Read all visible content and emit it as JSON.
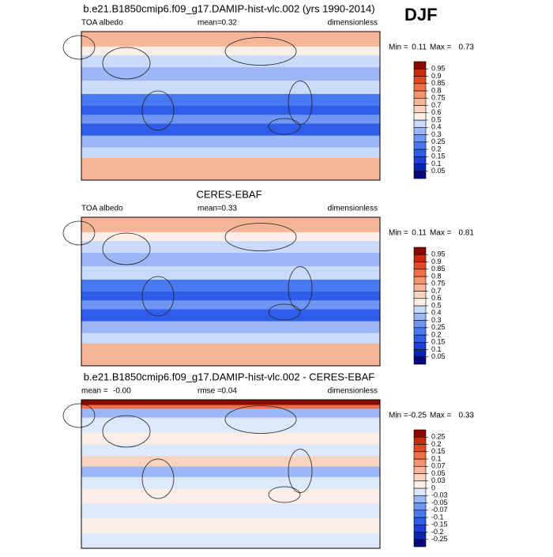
{
  "header": {
    "season": "DJF"
  },
  "panels": [
    {
      "title": "b.e21.B1850cmip6.f09_g17.DAMIP-hist-vlc.002 (yrs 1990-2014)",
      "field": "TOA albedo",
      "stat1_label": "mean=",
      "stat1": "0.32",
      "units": "dimensionless",
      "min_label": "Min =",
      "min": "0.11",
      "max_label": "Max =",
      "max": "0.73",
      "colorbar": {
        "levels": [
          0.05,
          0.1,
          0.15,
          0.2,
          0.25,
          0.3,
          0.4,
          0.5,
          0.6,
          0.7,
          0.75,
          0.8,
          0.85,
          0.9,
          0.95
        ],
        "colors": [
          "#08087a",
          "#0c22b0",
          "#1d3fd8",
          "#2f5ce8",
          "#4a78ee",
          "#6f96f2",
          "#9bb7f6",
          "#c9dafa",
          "#fbeee6",
          "#f9d3c0",
          "#f6b498",
          "#f39470",
          "#ee7048",
          "#e04a22",
          "#c82c0c",
          "#8b0a00"
        ]
      }
    },
    {
      "title": "CERES-EBAF",
      "field": "TOA albedo",
      "stat1_label": "mean=",
      "stat1": "0.33",
      "units": "dimensionless",
      "min_label": "Min =",
      "min": "0.11",
      "max_label": "Max =",
      "max": "0.81",
      "colorbar": {
        "levels": [
          0.05,
          0.1,
          0.15,
          0.2,
          0.25,
          0.3,
          0.4,
          0.5,
          0.6,
          0.7,
          0.75,
          0.8,
          0.85,
          0.9,
          0.95
        ],
        "colors": [
          "#08087a",
          "#0c22b0",
          "#1d3fd8",
          "#2f5ce8",
          "#4a78ee",
          "#6f96f2",
          "#9bb7f6",
          "#c9dafa",
          "#fbeee6",
          "#f9d3c0",
          "#f6b498",
          "#f39470",
          "#ee7048",
          "#e04a22",
          "#c82c0c",
          "#8b0a00"
        ]
      }
    },
    {
      "title": "b.e21.B1850cmip6.f09_g17.DAMIP-hist-vlc.002 - CERES-EBAF",
      "stat1_label": "mean =",
      "stat1": "-0.00",
      "stat2_label": "rmse =",
      "stat2": "0.04",
      "units": "dimensionless",
      "min_label": "Min =",
      "min": "-0.25",
      "max_label": "Max =",
      "max": "0.33",
      "colorbar": {
        "levels": [
          -0.25,
          -0.2,
          -0.15,
          -0.1,
          -0.07,
          -0.05,
          -0.03,
          0,
          0.03,
          0.05,
          0.07,
          0.1,
          0.15,
          0.2,
          0.25
        ],
        "colors": [
          "#08087a",
          "#0c22b0",
          "#1d3fd8",
          "#2f5ce8",
          "#4a78ee",
          "#6f96f2",
          "#9bb7f6",
          "#dde8fb",
          "#fbeee6",
          "#f9d3c0",
          "#f6b498",
          "#f39470",
          "#ee7048",
          "#e04a22",
          "#c82c0c",
          "#8b0a00"
        ]
      }
    }
  ]
}
